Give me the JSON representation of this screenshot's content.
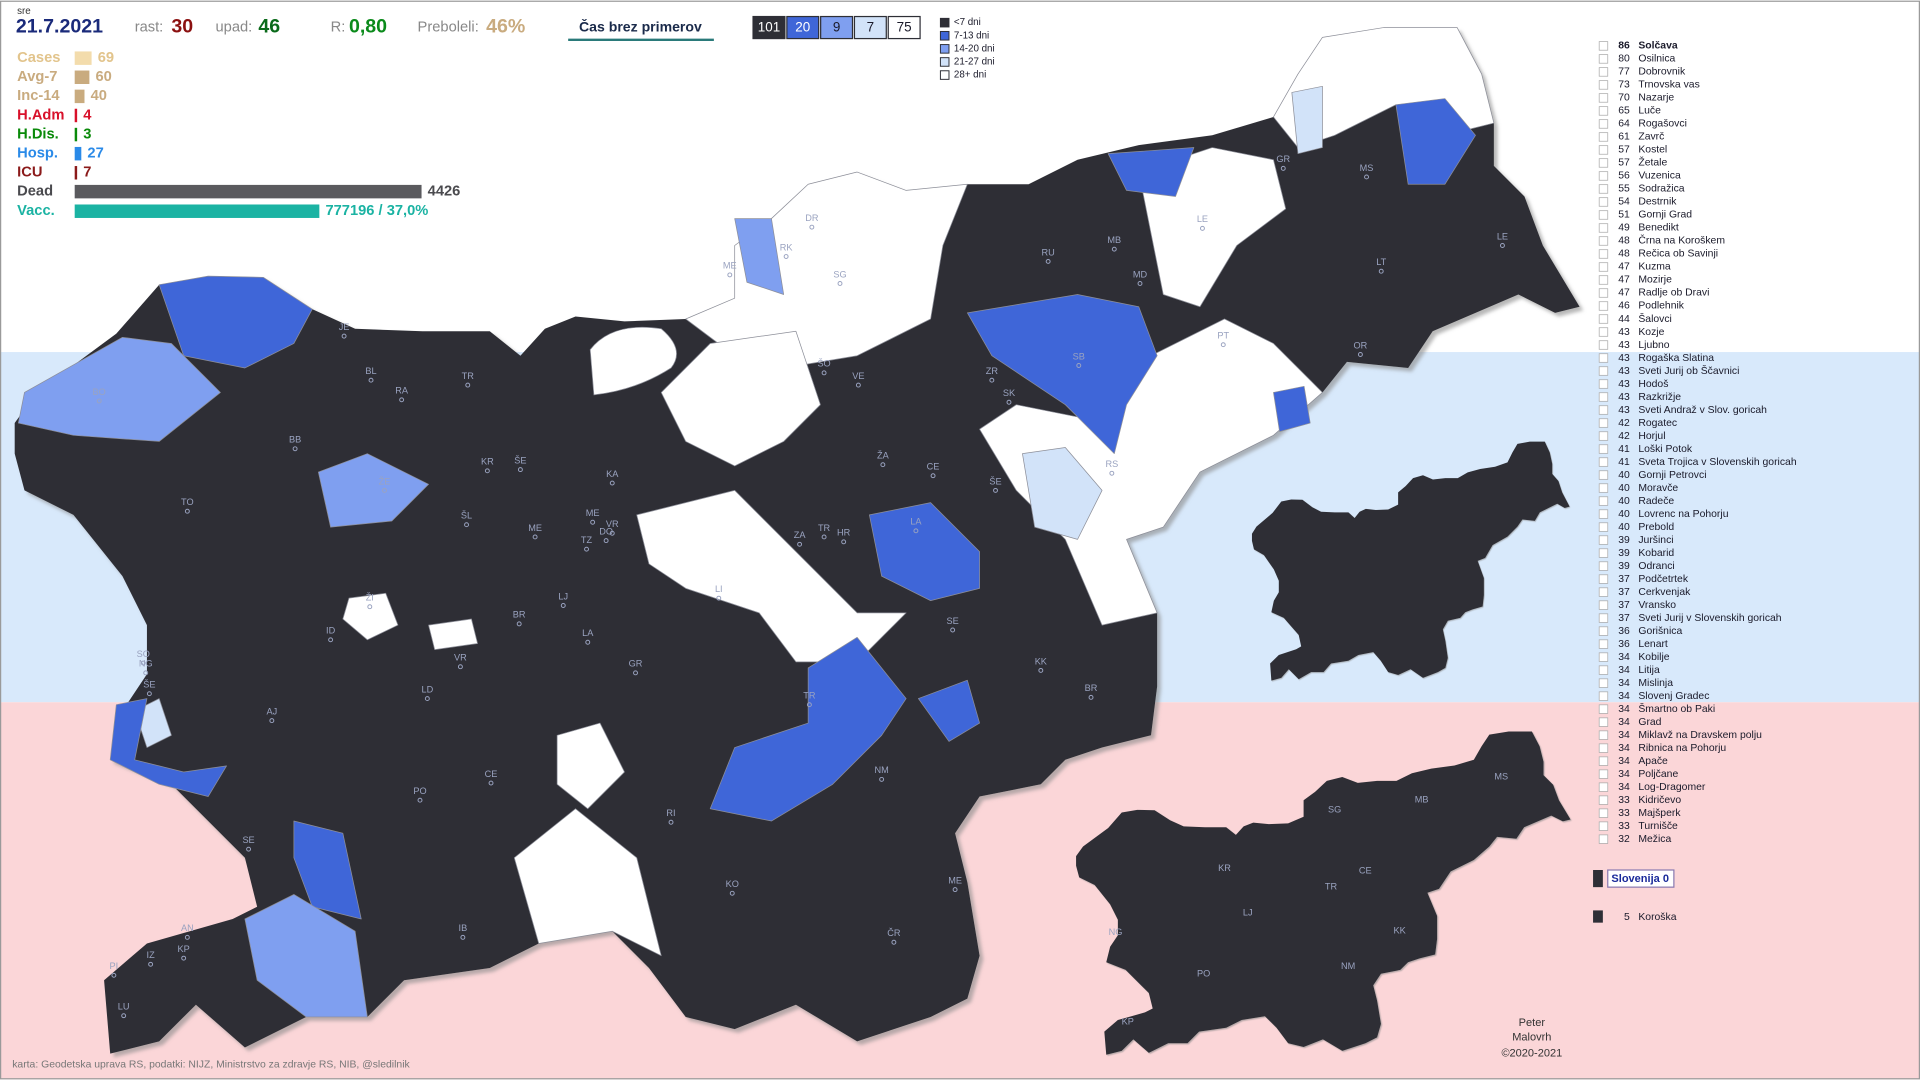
{
  "header": {
    "weekday": "sre",
    "date": "21.7.2021",
    "rast_label": "rast:",
    "rast": 30,
    "upad_label": "upad:",
    "upad": 46,
    "r_label": "R:",
    "r": "0,80",
    "preboleli_label": "Preboleli:",
    "preboleli": "46%",
    "button": "Čas brez primerov"
  },
  "counts": [
    {
      "value": 101,
      "color": "#2e2f36",
      "text_color": "#ffffff"
    },
    {
      "value": 20,
      "color": "#3f66d8",
      "text_color": "#ffffff"
    },
    {
      "value": 9,
      "color": "#7f9ff0",
      "text_color": "#1a1a2a"
    },
    {
      "value": 7,
      "color": "#d2e3f9",
      "text_color": "#1a1a2a"
    },
    {
      "value": 75,
      "color": "#ffffff",
      "text_color": "#1a1a2a"
    }
  ],
  "legend": [
    {
      "label": "<7 dni",
      "color": "#2e2f36"
    },
    {
      "label": "7-13 dni",
      "color": "#3f66d8"
    },
    {
      "label": "14-20 dni",
      "color": "#7f9ff0"
    },
    {
      "label": "21-27 dni",
      "color": "#d2e3f9"
    },
    {
      "label": "28+ dni",
      "color": "#ffffff"
    }
  ],
  "stats": [
    {
      "label": "Cases",
      "value": 69,
      "color": "#f3dcac",
      "text_color": "#e2c48c"
    },
    {
      "label": "Avg-7",
      "value": 60,
      "color": "#c9ab7f",
      "text_color": "#c9ab7f"
    },
    {
      "label": "Inc-14",
      "value": 40,
      "color": "#c9ab7f",
      "text_color": "#c9ab7f"
    },
    {
      "label": "H.Adm",
      "value": 4,
      "color": "#d8102a",
      "text_color": "#d8102a"
    },
    {
      "label": "H.Dis.",
      "value": 3,
      "color": "#0a8a0a",
      "text_color": "#0a8a0a"
    },
    {
      "label": "Hosp.",
      "value": 27,
      "color": "#2a8ae8",
      "text_color": "#2a8ae8"
    },
    {
      "label": "ICU",
      "value": 7,
      "color": "#8b1a1a",
      "text_color": "#8b1a1a"
    }
  ],
  "dead": {
    "label": "Dead",
    "value": 4426,
    "color": "#5a5a5e",
    "text_color": "#4a4a4e"
  },
  "vacc": {
    "label": "Vacc.",
    "value": 777196,
    "percent": 37.0,
    "value_label": "777196 / 37,0%",
    "color": "#1bb3a3",
    "text_color": "#1bb3a3"
  },
  "map_labels": [
    "DR",
    "RK",
    "ME",
    "SG",
    "GR",
    "MS",
    "LE",
    "LE",
    "RU",
    "MB",
    "MD",
    "LT",
    "JE",
    "BL",
    "TR",
    "RA",
    "BO",
    "OR",
    "ŠO",
    "VE",
    "SB",
    "ZR",
    "SK",
    "PT",
    "BB",
    "KR",
    "ŠE",
    "KA",
    "ŽA",
    "CE",
    "ŠE",
    "RS",
    "ŽE",
    "TO",
    "ŠL",
    "ME",
    "VR",
    "ME",
    "TZ",
    "DO",
    "ZA",
    "TR",
    "HR",
    "LA",
    "LJ",
    "LI",
    "ŽI",
    "BR",
    "ID",
    "LA",
    "SE",
    "SO",
    "NG",
    "ŠE",
    "VR",
    "GR",
    "KK",
    "BR",
    "LD",
    "TR",
    "AJ",
    "CE",
    "NM",
    "PO",
    "RI",
    "SE",
    "KO",
    "ME",
    "IB",
    "AN",
    "KP",
    "IZ",
    "PI",
    "ČR",
    "LU"
  ],
  "mini_map_labels": [
    "MS",
    "SG",
    "MB",
    "KR",
    "TR",
    "CE",
    "LJ",
    "NG",
    "KK",
    "PO",
    "NM",
    "KP"
  ],
  "ranking": [
    {
      "value": 86,
      "name": "Solčava"
    },
    {
      "value": 80,
      "name": "Osilnica"
    },
    {
      "value": 77,
      "name": "Dobrovnik"
    },
    {
      "value": 73,
      "name": "Trnovska vas"
    },
    {
      "value": 70,
      "name": "Nazarje"
    },
    {
      "value": 65,
      "name": "Luče"
    },
    {
      "value": 64,
      "name": "Rogašovci"
    },
    {
      "value": 61,
      "name": "Zavrč"
    },
    {
      "value": 57,
      "name": "Kostel"
    },
    {
      "value": 57,
      "name": "Žetale"
    },
    {
      "value": 56,
      "name": "Vuzenica"
    },
    {
      "value": 55,
      "name": "Sodražica"
    },
    {
      "value": 54,
      "name": "Destrnik"
    },
    {
      "value": 51,
      "name": "Gornji Grad"
    },
    {
      "value": 49,
      "name": "Benedikt"
    },
    {
      "value": 48,
      "name": "Črna na Koroškem"
    },
    {
      "value": 48,
      "name": "Rečica ob Savinji"
    },
    {
      "value": 47,
      "name": "Kuzma"
    },
    {
      "value": 47,
      "name": "Mozirje"
    },
    {
      "value": 47,
      "name": "Radlje ob Dravi"
    },
    {
      "value": 46,
      "name": "Podlehnik"
    },
    {
      "value": 44,
      "name": "Šalovci"
    },
    {
      "value": 43,
      "name": "Kozje"
    },
    {
      "value": 43,
      "name": "Ljubno"
    },
    {
      "value": 43,
      "name": "Rogaška Slatina"
    },
    {
      "value": 43,
      "name": "Sveti Jurij ob Ščavnici"
    },
    {
      "value": 43,
      "name": "Hodoš"
    },
    {
      "value": 43,
      "name": "Razkrižje"
    },
    {
      "value": 43,
      "name": "Sveti Andraž v Slov. goricah"
    },
    {
      "value": 42,
      "name": "Rogatec"
    },
    {
      "value": 42,
      "name": "Horjul"
    },
    {
      "value": 41,
      "name": "Loški Potok"
    },
    {
      "value": 41,
      "name": "Sveta Trojica v Slovenskih goricah"
    },
    {
      "value": 40,
      "name": "Gornji Petrovci"
    },
    {
      "value": 40,
      "name": "Moravče"
    },
    {
      "value": 40,
      "name": "Radeče"
    },
    {
      "value": 40,
      "name": "Lovrenc na Pohorju"
    },
    {
      "value": 40,
      "name": "Prebold"
    },
    {
      "value": 39,
      "name": "Juršinci"
    },
    {
      "value": 39,
      "name": "Kobarid"
    },
    {
      "value": 39,
      "name": "Odranci"
    },
    {
      "value": 37,
      "name": "Podčetrtek"
    },
    {
      "value": 37,
      "name": "Cerkvenjak"
    },
    {
      "value": 37,
      "name": "Vransko"
    },
    {
      "value": 37,
      "name": "Sveti Jurij v Slovenskih goricah"
    },
    {
      "value": 36,
      "name": "Gorišnica"
    },
    {
      "value": 36,
      "name": "Lenart"
    },
    {
      "value": 34,
      "name": "Kobilje"
    },
    {
      "value": 34,
      "name": "Litija"
    },
    {
      "value": 34,
      "name": "Mislinja"
    },
    {
      "value": 34,
      "name": "Slovenj Gradec"
    },
    {
      "value": 34,
      "name": "Šmartno ob Paki"
    },
    {
      "value": 34,
      "name": "Grad"
    },
    {
      "value": 34,
      "name": "Miklavž na Dravskem polju"
    },
    {
      "value": 34,
      "name": "Ribnica na Pohorju"
    },
    {
      "value": 34,
      "name": "Apače"
    },
    {
      "value": 34,
      "name": "Poljčane"
    },
    {
      "value": 34,
      "name": "Log-Dragomer"
    },
    {
      "value": 33,
      "name": "Kidričevo"
    },
    {
      "value": 33,
      "name": "Majšperk"
    },
    {
      "value": 33,
      "name": "Turnišče"
    },
    {
      "value": 32,
      "name": "Mežica"
    }
  ],
  "summary": {
    "slovenija": "Slovenija 0",
    "region_value": 5,
    "region_name": "Koroška"
  },
  "footer": {
    "source": "karta: Geodetska uprava RS,  podatki: NIJZ, Ministrstvo za zdravje RS, NIB, @sledilnik",
    "author": [
      "Peter",
      "Malovrh",
      "©2020-2021"
    ]
  }
}
